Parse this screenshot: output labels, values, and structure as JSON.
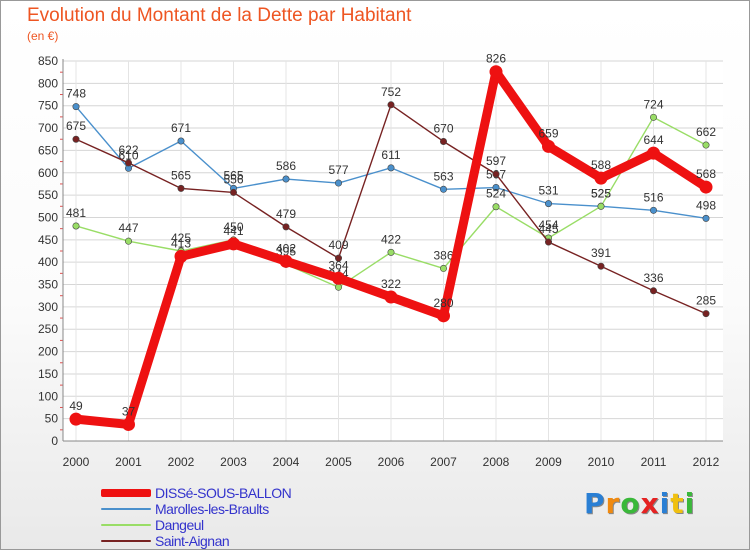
{
  "title": "Evolution du Montant de la Dette par Habitant",
  "unit_label": "(en €)",
  "chart_data": {
    "type": "line",
    "title": "Evolution du Montant de la Dette par Habitant",
    "ylabel": "(en €)",
    "xlabel": "",
    "x": [
      "2000",
      "2001",
      "2002",
      "2003",
      "2004",
      "2005",
      "2006",
      "2007",
      "2008",
      "2009",
      "2010",
      "2011",
      "2012"
    ],
    "ylim": [
      0,
      850
    ],
    "yticks": [
      0,
      50,
      100,
      150,
      200,
      250,
      300,
      350,
      400,
      450,
      500,
      550,
      600,
      650,
      700,
      750,
      800,
      850
    ],
    "grid": true,
    "legend_position": "bottom-left",
    "series": [
      {
        "name": "Marolles-les-Braults",
        "color": "#4a90cc",
        "values": [
          748,
          610,
          671,
          565,
          586,
          577,
          611,
          563,
          567,
          531,
          525,
          516,
          498
        ]
      },
      {
        "name": "Dangeul",
        "color": "#99dd66",
        "values": [
          481,
          447,
          425,
          450,
          395,
          344,
          422,
          386,
          524,
          454,
          525,
          724,
          662
        ]
      },
      {
        "name": "Saint-Aignan",
        "color": "#772222",
        "values": [
          675,
          622,
          565,
          556,
          479,
          409,
          752,
          670,
          597,
          445,
          391,
          336,
          285
        ]
      },
      {
        "name": "DISSé-SOUS-BALLON",
        "color": "#ee1111",
        "values": [
          49,
          37,
          413,
          441,
          402,
          364,
          322,
          280,
          826,
          659,
          588,
          644,
          568
        ]
      }
    ],
    "legend": [
      "DISSé-SOUS-BALLON",
      "Marolles-les-Braults",
      "Dangeul",
      "Saint-Aignan"
    ]
  },
  "logo": {
    "letters": [
      "P",
      "r",
      "o",
      "x",
      "i",
      "t",
      "i"
    ]
  }
}
